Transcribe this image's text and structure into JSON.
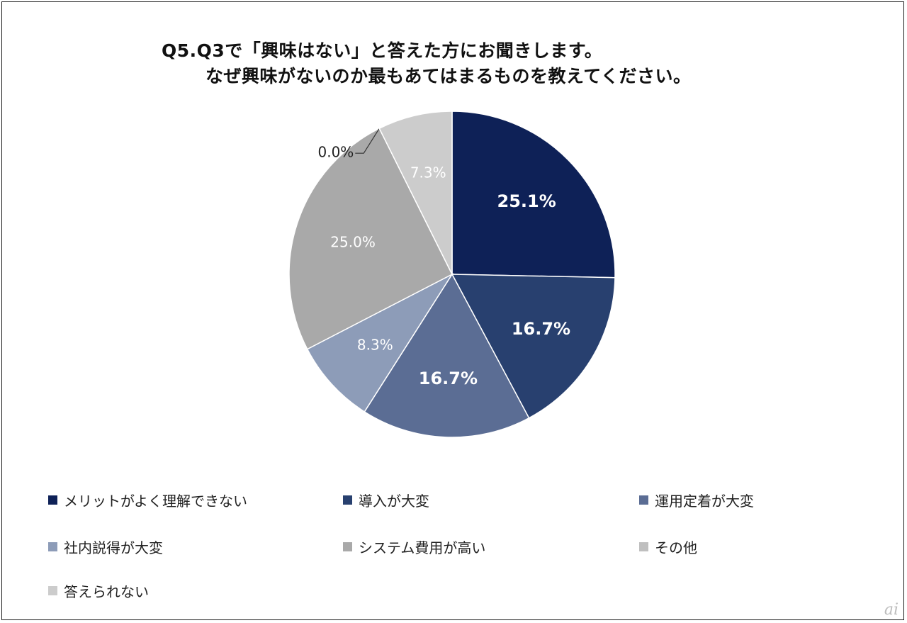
{
  "chart_data": {
    "type": "pie",
    "title_line1": "Q5.Q3で「興味はない」と答えた方にお聞きします。",
    "title_line2": "なぜ興味がないのか最もあてはまるものを教えてください。",
    "start_angle": "12 o'clock, clockwise",
    "slices": [
      {
        "label": "メリットがよく理解できない",
        "value": 25.1,
        "display": "25.1%",
        "color": "#0e2157",
        "text_color": "#ffffff",
        "bold": true
      },
      {
        "label": "導入が大変",
        "value": 16.7,
        "display": "16.7%",
        "color": "#28406f",
        "text_color": "#ffffff",
        "bold": true
      },
      {
        "label": "運用定着が大変",
        "value": 16.7,
        "display": "16.7%",
        "color": "#5b6d94",
        "text_color": "#ffffff",
        "bold": true
      },
      {
        "label": "社内説得が大変",
        "value": 8.3,
        "display": "8.3%",
        "color": "#8d9cb8",
        "text_color": "#ffffff",
        "bold": false
      },
      {
        "label": "システム費用が高い",
        "value": 25.0,
        "display": "25.0%",
        "color": "#a9a9a9",
        "text_color": "#ffffff",
        "bold": false
      },
      {
        "label": "その他",
        "value": 0.0,
        "display": "0.0%",
        "color": "#bfbfbf",
        "text_color": "#222222",
        "bold": false
      },
      {
        "label": "答えられない",
        "value": 7.3,
        "display": "7.3%",
        "color": "#cccccc",
        "text_color": "#ffffff",
        "bold": false
      }
    ]
  },
  "watermark": "ai"
}
